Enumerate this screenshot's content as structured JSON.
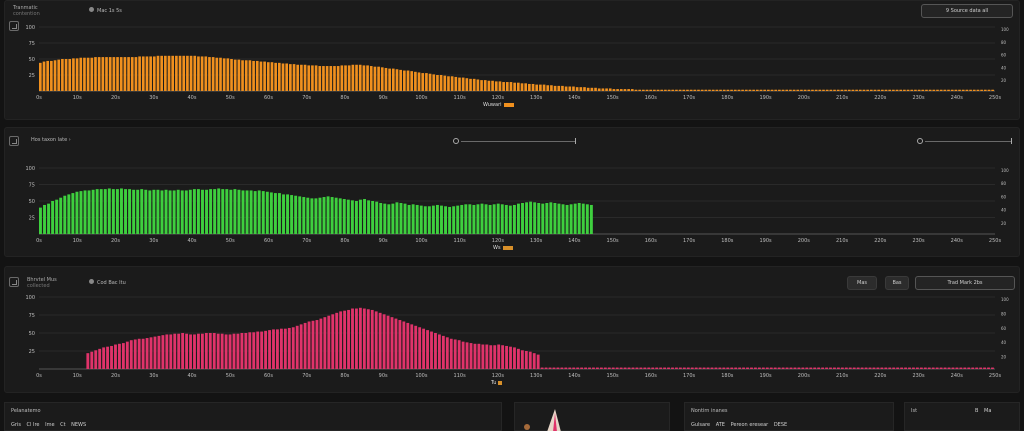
{
  "colors": {
    "orange": "#f0901e",
    "green": "#3ecf3e",
    "pink": "#e0336a",
    "grid": "#2a2a2a",
    "axis": "#555555",
    "label": "#d8902a"
  },
  "panel1": {
    "title": "Tranmatic",
    "subtitle": "contention",
    "control_label": "Mac 1s 5s",
    "top_right_button": "9   Source data all",
    "axis_title": "Wuwari",
    "chart_data": {
      "type": "bar",
      "color": "orange",
      "ylim": [
        0,
        100
      ],
      "y_ticks": [
        "100",
        "75",
        "50",
        "25"
      ],
      "x_ticks": [
        "0s",
        "10s",
        "20s",
        "30s",
        "40s",
        "50s",
        "60s",
        "70s",
        "80s",
        "90s",
        "100s",
        "110s",
        "120s",
        "130s",
        "140s",
        "150s",
        "160s",
        "170s",
        "180s",
        "190s",
        "200s",
        "210s",
        "220s",
        "230s",
        "240s",
        "250s"
      ],
      "right_ticks": [
        "100",
        "80",
        "60",
        "40",
        "20"
      ],
      "values": [
        44,
        46,
        47,
        47,
        48,
        49,
        50,
        50,
        50,
        51,
        51,
        52,
        52,
        52,
        52,
        53,
        53,
        53,
        53,
        53,
        53,
        53,
        53,
        53,
        53,
        53,
        53,
        54,
        54,
        54,
        54,
        54,
        55,
        55,
        55,
        55,
        55,
        55,
        55,
        55,
        55,
        55,
        55,
        54,
        54,
        54,
        53,
        53,
        52,
        52,
        51,
        51,
        50,
        49,
        49,
        48,
        48,
        48,
        47,
        47,
        46,
        46,
        45,
        45,
        44,
        44,
        43,
        43,
        42,
        42,
        41,
        41,
        41,
        40,
        40,
        40,
        39,
        39,
        39,
        39,
        39,
        39,
        40,
        40,
        40,
        41,
        41,
        41,
        40,
        40,
        39,
        38,
        38,
        37,
        36,
        35,
        35,
        34,
        33,
        32,
        32,
        31,
        30,
        29,
        28,
        28,
        27,
        26,
        25,
        25,
        24,
        23,
        23,
        22,
        21,
        21,
        20,
        19,
        19,
        18,
        17,
        17,
        16,
        16,
        15,
        15,
        14,
        14,
        14,
        13,
        13,
        12,
        12,
        11,
        11,
        10,
        10,
        10,
        9,
        9,
        8,
        8,
        8,
        7,
        7,
        7,
        6,
        6,
        6,
        5,
        5,
        5,
        4,
        4,
        4,
        4,
        3,
        3,
        3,
        3,
        3,
        3,
        2,
        2,
        2,
        2,
        2,
        2,
        2,
        2,
        2,
        2,
        2,
        2,
        2,
        2,
        2,
        2,
        2,
        2,
        2,
        2,
        2,
        2,
        2,
        2,
        2,
        2,
        2,
        2,
        2,
        2,
        2,
        2,
        2,
        2,
        2,
        2,
        2,
        2,
        2,
        2,
        2,
        2,
        2,
        2,
        2,
        2,
        2,
        2,
        2,
        2,
        2,
        2,
        2,
        2,
        2,
        2,
        2,
        2,
        2,
        2,
        2,
        2,
        2,
        2,
        2,
        2,
        2,
        2,
        2,
        2,
        2,
        2,
        2,
        2,
        2,
        2,
        2,
        2,
        2,
        2,
        2,
        2,
        2,
        2,
        2,
        2,
        2,
        2,
        2,
        2,
        2,
        2,
        2,
        2,
        2,
        2,
        2,
        2
      ]
    }
  },
  "panel2": {
    "title": "Hos taxon late",
    "axis_title": "Ws",
    "chart_data": {
      "type": "bar",
      "color": "green",
      "ylim": [
        0,
        100
      ],
      "y_ticks": [
        "100",
        "75",
        "50",
        "25"
      ],
      "x_ticks": [
        "0s",
        "10s",
        "20s",
        "30s",
        "40s",
        "50s",
        "60s",
        "70s",
        "80s",
        "90s",
        "100s",
        "110s",
        "120s",
        "130s",
        "140s",
        "150s",
        "160s",
        "170s",
        "180s",
        "190s",
        "200s",
        "210s",
        "220s",
        "230s",
        "240s",
        "250s"
      ],
      "right_ticks": [
        "100",
        "80",
        "60",
        "40",
        "20"
      ],
      "values": [
        40,
        44,
        46,
        50,
        52,
        55,
        58,
        60,
        62,
        64,
        65,
        66,
        66,
        67,
        68,
        68,
        68,
        69,
        68,
        68,
        69,
        68,
        68,
        67,
        67,
        68,
        67,
        66,
        67,
        67,
        66,
        67,
        66,
        66,
        67,
        66,
        66,
        67,
        68,
        68,
        67,
        67,
        68,
        68,
        69,
        68,
        68,
        67,
        68,
        67,
        66,
        66,
        66,
        65,
        66,
        65,
        64,
        63,
        62,
        62,
        60,
        60,
        59,
        58,
        57,
        56,
        55,
        54,
        54,
        55,
        56,
        57,
        56,
        55,
        54,
        53,
        52,
        51,
        50,
        52,
        53,
        51,
        50,
        49,
        47,
        46,
        45,
        46,
        48,
        47,
        46,
        44,
        45,
        44,
        43,
        42,
        42,
        43,
        44,
        43,
        42,
        41,
        42,
        43,
        44,
        45,
        45,
        44,
        45,
        46,
        45,
        44,
        45,
        46,
        45,
        44,
        43,
        44,
        46,
        47,
        48,
        49,
        48,
        47,
        46,
        47,
        48,
        47,
        46,
        45,
        44,
        45,
        46,
        47,
        46,
        45,
        44,
        0,
        0,
        0,
        0,
        0,
        0,
        0,
        0,
        0,
        0,
        0,
        0,
        0,
        0,
        0,
        0,
        0,
        0,
        0,
        0,
        0,
        0,
        0,
        0,
        0,
        0,
        0,
        0,
        0,
        0,
        0,
        0,
        0,
        0,
        0,
        0,
        0,
        0,
        0,
        0,
        0,
        0,
        0,
        0,
        0,
        0,
        0,
        0,
        0,
        0,
        0,
        0,
        0,
        0,
        0,
        0,
        0,
        0,
        0,
        0,
        0,
        0,
        0,
        0,
        0,
        0,
        0,
        0,
        0,
        0,
        0,
        0,
        0,
        0,
        0,
        0,
        0,
        0,
        0,
        0,
        0,
        0,
        0,
        0,
        0,
        0,
        0,
        0,
        0,
        0,
        0,
        0,
        0,
        0,
        0,
        0,
        0,
        0,
        0
      ]
    }
  },
  "panel3": {
    "title": "Bhrvtel Mus",
    "subtitle": "collected",
    "control_label": "Cod Bac Itu",
    "buttons": [
      "Mas",
      "Bas",
      "Trad Mark 2bs"
    ],
    "axis_title": "Tu",
    "chart_data": {
      "type": "bar",
      "color": "pink",
      "ylim": [
        0,
        100
      ],
      "y_ticks": [
        "100",
        "75",
        "50",
        "25"
      ],
      "x_ticks": [
        "0s",
        "10s",
        "20s",
        "30s",
        "40s",
        "50s",
        "60s",
        "70s",
        "80s",
        "90s",
        "100s",
        "110s",
        "120s",
        "130s",
        "140s",
        "150s",
        "160s",
        "170s",
        "180s",
        "190s",
        "200s",
        "210s",
        "220s",
        "230s",
        "240s",
        "250s"
      ],
      "right_ticks": [
        "100",
        "80",
        "60",
        "40",
        "20"
      ],
      "values": [
        0,
        0,
        0,
        0,
        0,
        0,
        0,
        0,
        0,
        0,
        0,
        0,
        22,
        24,
        26,
        28,
        30,
        31,
        32,
        34,
        35,
        36,
        38,
        40,
        41,
        42,
        42,
        43,
        44,
        45,
        46,
        47,
        48,
        48,
        49,
        49,
        50,
        49,
        48,
        48,
        49,
        49,
        50,
        50,
        50,
        49,
        49,
        48,
        48,
        49,
        49,
        50,
        50,
        51,
        51,
        52,
        52,
        53,
        54,
        55,
        55,
        56,
        56,
        57,
        58,
        60,
        62,
        64,
        66,
        67,
        68,
        70,
        72,
        74,
        76,
        78,
        80,
        81,
        82,
        84,
        84,
        85,
        84,
        83,
        82,
        80,
        78,
        76,
        74,
        72,
        70,
        68,
        66,
        64,
        62,
        60,
        58,
        56,
        54,
        52,
        50,
        48,
        46,
        44,
        42,
        41,
        40,
        38,
        37,
        36,
        35,
        35,
        34,
        34,
        33,
        33,
        34,
        33,
        32,
        31,
        30,
        28,
        26,
        25,
        24,
        22,
        20,
        2,
        2,
        2,
        2,
        2,
        2,
        2,
        2,
        2,
        2,
        2,
        2,
        2,
        2,
        2,
        2,
        2,
        2,
        2,
        2,
        2,
        2,
        2,
        2,
        2,
        2,
        2,
        2,
        2,
        2,
        2,
        2,
        2,
        2,
        2,
        2,
        2,
        2,
        2,
        2,
        2,
        2,
        2,
        2,
        2,
        2,
        2,
        2,
        2,
        2,
        2,
        2,
        2,
        2,
        2,
        2,
        2,
        2,
        2,
        2,
        2,
        2,
        2,
        2,
        2,
        2,
        2,
        2,
        2,
        2,
        2,
        2,
        2,
        2,
        2,
        2,
        2,
        2,
        2,
        2,
        2,
        2,
        2,
        2,
        2,
        2,
        2,
        2,
        2,
        2,
        2,
        2,
        2,
        2,
        2,
        2,
        2,
        2,
        2,
        2,
        2,
        2,
        2,
        2,
        2,
        2,
        2,
        2,
        2,
        2,
        2,
        2,
        2,
        2,
        2
      ]
    }
  },
  "widgets": {
    "w1": {
      "label": "Pelanatemo",
      "row": [
        "Gris",
        "Cl Ire",
        "Ime",
        "Ct",
        "NEWS"
      ]
    },
    "w2": {
      "label": ""
    },
    "w3": {
      "label": "Nontirn inanes",
      "row": [
        "Gulsare",
        "ATE",
        "Pereon eresear",
        "DESE"
      ]
    },
    "w4": {
      "label": "Ist",
      "row": [
        "B",
        "Ma"
      ]
    }
  }
}
